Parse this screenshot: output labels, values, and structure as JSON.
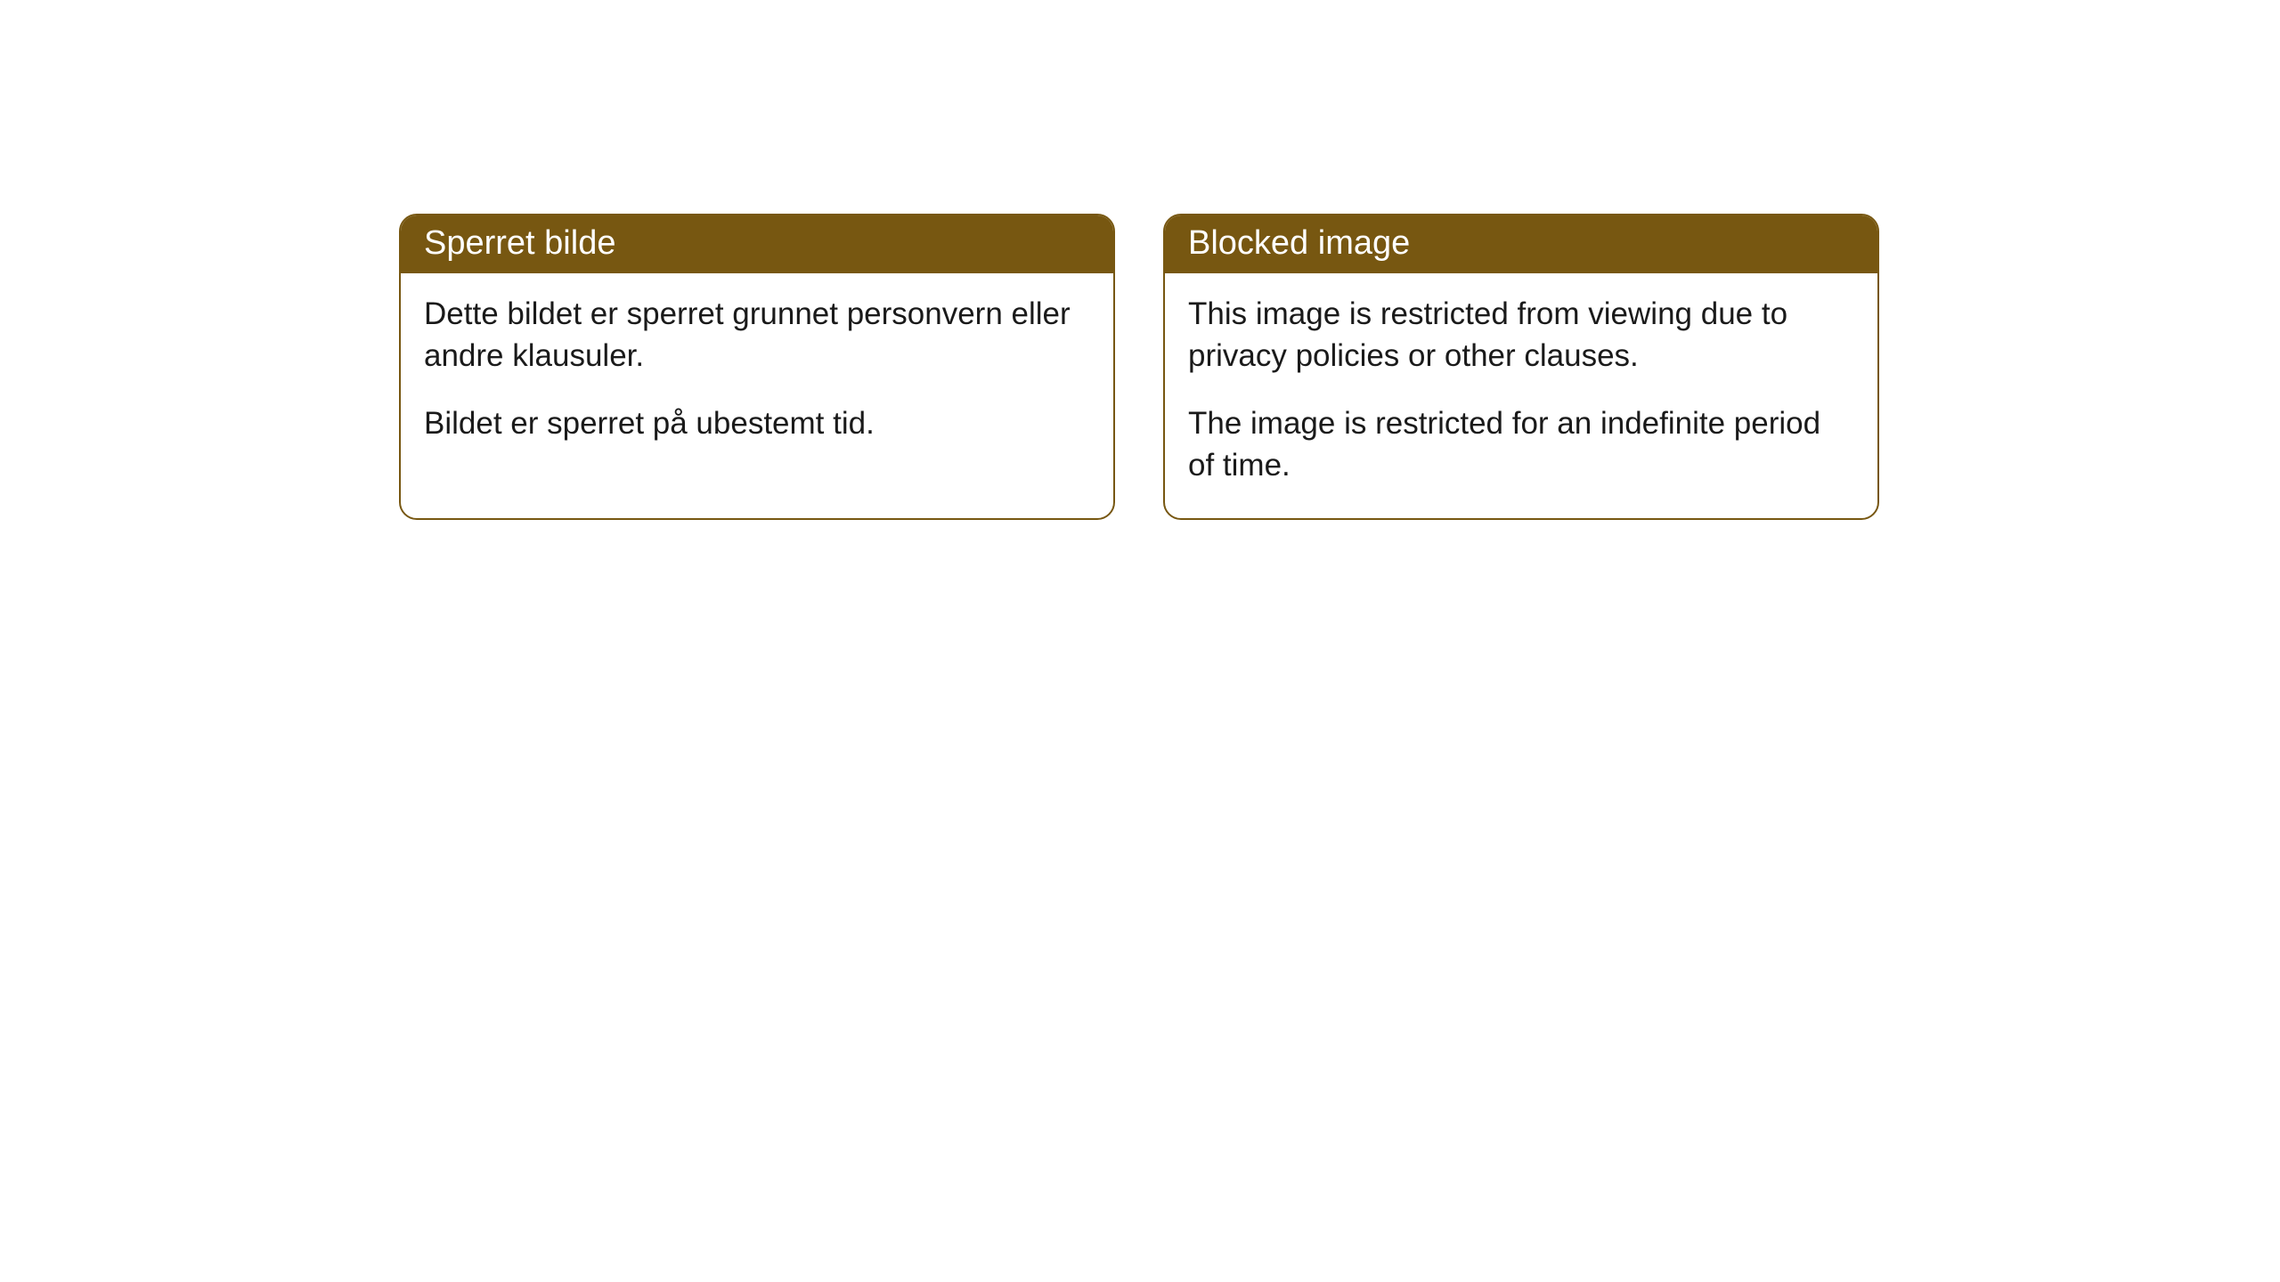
{
  "cards": [
    {
      "title": "Sperret bilde",
      "paragraph1": "Dette bildet er sperret grunnet personvern eller andre klausuler.",
      "paragraph2": "Bildet er sperret på ubestemt tid."
    },
    {
      "title": "Blocked image",
      "paragraph1": "This image is restricted from viewing due to privacy policies or other clauses.",
      "paragraph2": "The image is restricted for an indefinite period of time."
    }
  ],
  "style": {
    "header_bg_color": "#775711",
    "header_text_color": "#ffffff",
    "border_color": "#775711",
    "body_text_color": "#1a1a1a",
    "background_color": "#ffffff",
    "border_radius": 20,
    "header_fontsize": 38,
    "body_fontsize": 35
  }
}
